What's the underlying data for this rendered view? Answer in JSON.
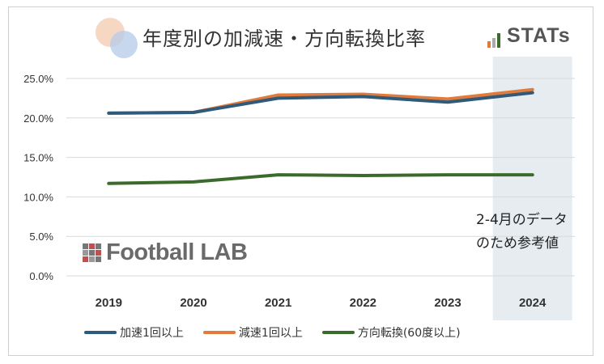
{
  "title": "年度別の加減速・方向転換比率",
  "brand": {
    "stats": "STATs",
    "football_lab": "Football LAB"
  },
  "annotation": [
    "2-4月のデータ",
    "のため参考値"
  ],
  "chart_data": {
    "type": "line",
    "title": "年度別の加減速・方向転換比率",
    "categories": [
      "2019",
      "2020",
      "2021",
      "2022",
      "2023",
      "2024"
    ],
    "yticks": [
      "0.0%",
      "5.0%",
      "10.0%",
      "15.0%",
      "20.0%",
      "25.0%"
    ],
    "ylim": [
      0,
      25
    ],
    "grid": true,
    "legend_position": "bottom",
    "highlight_category": "2024",
    "series": [
      {
        "name": "加速1回以上",
        "color": "#2f5a7a",
        "values": [
          20.6,
          20.7,
          22.5,
          22.7,
          22.0,
          23.2
        ]
      },
      {
        "name": "減速1回以上",
        "color": "#e07b3c",
        "values": [
          20.6,
          20.7,
          22.9,
          23.0,
          22.4,
          23.6
        ]
      },
      {
        "name": "方向転換(60度以上)",
        "color": "#3b6b2b",
        "values": [
          11.7,
          11.9,
          12.8,
          12.7,
          12.8,
          12.8
        ]
      }
    ]
  }
}
